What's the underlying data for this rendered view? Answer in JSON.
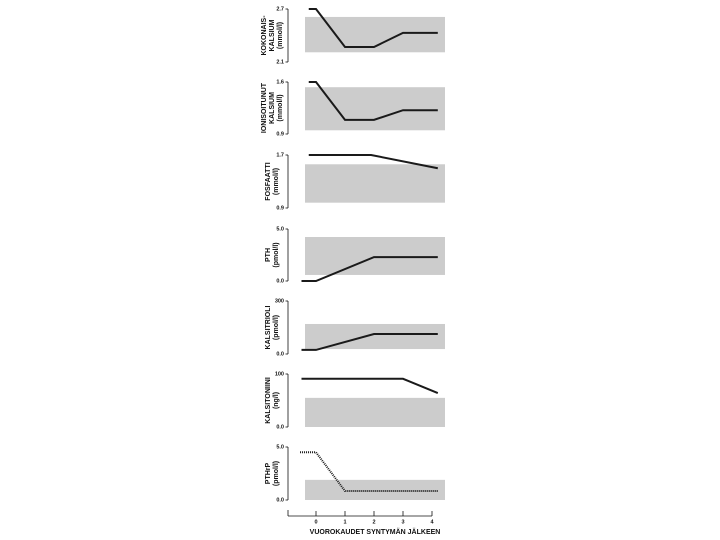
{
  "chart_data": [
    {
      "type": "line",
      "ylabel": [
        "KOKONAIS-",
        "KALSIUM",
        "(mmol/l)"
      ],
      "ylim": [
        2.1,
        2.7
      ],
      "yticks": [
        2.1,
        2.7
      ],
      "band": [
        2.21,
        2.61
      ],
      "band_color": "#cccccc",
      "xlim": [
        -1,
        4.5
      ],
      "series": [
        {
          "color": "#1a1a1a",
          "x": [
            -0.25,
            0,
            1,
            2,
            3,
            4.2
          ],
          "values": [
            2.7,
            2.7,
            2.27,
            2.27,
            2.43,
            2.43
          ]
        }
      ]
    },
    {
      "type": "line",
      "ylabel": [
        "IONISOITUNUT",
        "KALSIUM",
        "(mmol/l)"
      ],
      "ylim": [
        0.9,
        1.6
      ],
      "yticks": [
        0.9,
        1.6
      ],
      "band": [
        0.95,
        1.53
      ],
      "band_color": "#cccccc",
      "xlim": [
        -1,
        4.5
      ],
      "series": [
        {
          "color": "#1a1a1a",
          "x": [
            -0.25,
            0,
            1,
            2,
            3,
            4.2
          ],
          "values": [
            1.6,
            1.6,
            1.09,
            1.09,
            1.22,
            1.22
          ]
        }
      ]
    },
    {
      "type": "line",
      "ylabel": [
        "FOSFAATTI",
        "(mmol/l)"
      ],
      "ylim": [
        0.9,
        1.7
      ],
      "yticks": [
        0.9,
        1.7
      ],
      "band": [
        0.98,
        1.56
      ],
      "band_color": "#cccccc",
      "xlim": [
        -1,
        4.5
      ],
      "series": [
        {
          "color": "#1a1a1a",
          "x": [
            -0.25,
            1.9,
            4.2
          ],
          "values": [
            1.7,
            1.7,
            1.5
          ]
        }
      ]
    },
    {
      "type": "line",
      "ylabel": [
        "PTH",
        "(pmol/l)"
      ],
      "ylim": [
        0,
        5
      ],
      "yticks": [
        {
          "value": 0,
          "label": "0.0"
        },
        {
          "value": 5,
          "label": "5.0"
        }
      ],
      "band": [
        0.58,
        4.23
      ],
      "band_color": "#cccccc",
      "xlim": [
        -1,
        4.5
      ],
      "series": [
        {
          "color": "#1a1a1a",
          "x": [
            -0.5,
            0,
            2,
            4.2
          ],
          "values": [
            0,
            0,
            2.3,
            2.3
          ]
        }
      ]
    },
    {
      "type": "line",
      "ylabel": [
        "KALSITRIOLI",
        "(pmol/l)"
      ],
      "ylim": [
        0,
        300
      ],
      "yticks": [
        {
          "value": 0,
          "label": "0.0"
        },
        300
      ],
      "band": [
        28,
        170
      ],
      "band_color": "#cccccc",
      "xlim": [
        -1,
        4.5
      ],
      "series": [
        {
          "color": "#1a1a1a",
          "x": [
            -0.5,
            0,
            2,
            4.2
          ],
          "values": [
            23,
            23,
            113,
            113
          ]
        }
      ]
    },
    {
      "type": "line",
      "ylabel": [
        "KALSITONIINI",
        "(ng/l)"
      ],
      "ylim": [
        0,
        100
      ],
      "yticks": [
        {
          "value": 0,
          "label": "0.0"
        },
        100
      ],
      "band": [
        0,
        55
      ],
      "band_color": "#cccccc",
      "xlim": [
        -1,
        4.5
      ],
      "series": [
        {
          "color": "#1a1a1a",
          "x": [
            -0.5,
            3,
            4.2
          ],
          "values": [
            91,
            91,
            64
          ]
        }
      ]
    },
    {
      "type": "line",
      "ylabel": [
        "PTHrP",
        "(pmol/l)"
      ],
      "ylim": [
        0,
        5
      ],
      "yticks": [
        {
          "value": 0,
          "label": "0.0"
        },
        {
          "value": 5,
          "label": "5.0"
        }
      ],
      "band": [
        0,
        1.9
      ],
      "band_color": "#cccccc",
      "xlim": [
        -1,
        4.5
      ],
      "line_style": "dotted",
      "series": [
        {
          "color": "#1a1a1a",
          "x": [
            -0.55,
            0,
            1,
            4.2
          ],
          "values": [
            4.5,
            4.5,
            0.85,
            0.85
          ]
        }
      ],
      "xticks": [
        0,
        1,
        2,
        3,
        4
      ],
      "xlabel": "VUOROKAUDET SYNTYMÄN JÄLKEEN"
    }
  ]
}
